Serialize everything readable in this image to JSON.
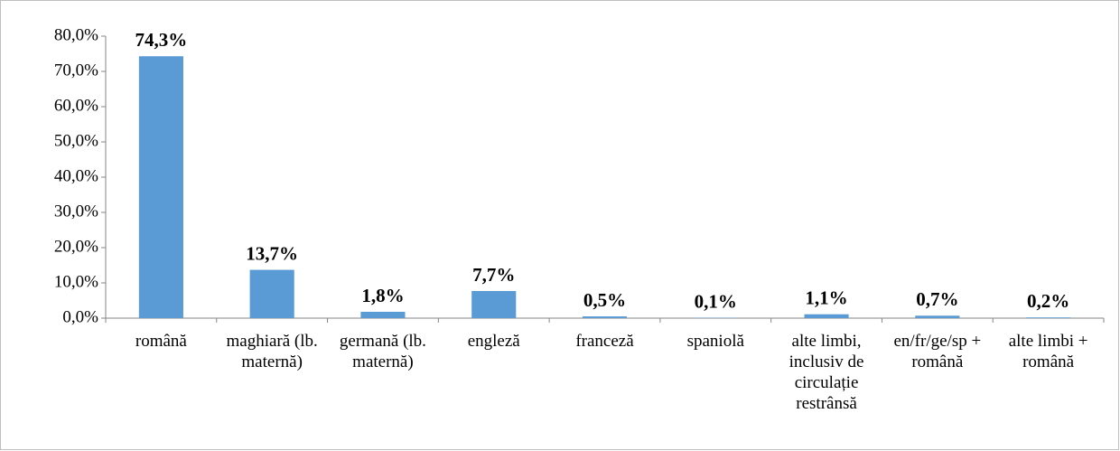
{
  "chart_data": {
    "type": "bar",
    "categories": [
      "română",
      "maghiară (lb. maternă)",
      "germană (lb. maternă)",
      "engleză",
      "franceză",
      "spaniolă",
      "alte limbi, inclusiv de circulație restrânsă",
      "en/fr/ge/sp + română",
      "alte limbi + română"
    ],
    "values": [
      74.3,
      13.7,
      1.8,
      7.7,
      0.5,
      0.1,
      1.1,
      0.7,
      0.2
    ],
    "value_labels": [
      "74,3%",
      "13,7%",
      "1,8%",
      "7,7%",
      "0,5%",
      "0,1%",
      "1,1%",
      "0,7%",
      "0,2%"
    ],
    "color": "#5b9bd5",
    "ylim": [
      0,
      80
    ],
    "yticks": [
      {
        "value": 0,
        "label": "0,0%"
      },
      {
        "value": 10,
        "label": "10,0%"
      },
      {
        "value": 20,
        "label": "20,0%"
      },
      {
        "value": 30,
        "label": "30,0%"
      },
      {
        "value": 40,
        "label": "40,0%"
      },
      {
        "value": 50,
        "label": "50,0%"
      },
      {
        "value": 60,
        "label": "60,0%"
      },
      {
        "value": 70,
        "label": "70,0%"
      },
      {
        "value": 80,
        "label": "80,0%"
      }
    ],
    "grid": false
  }
}
